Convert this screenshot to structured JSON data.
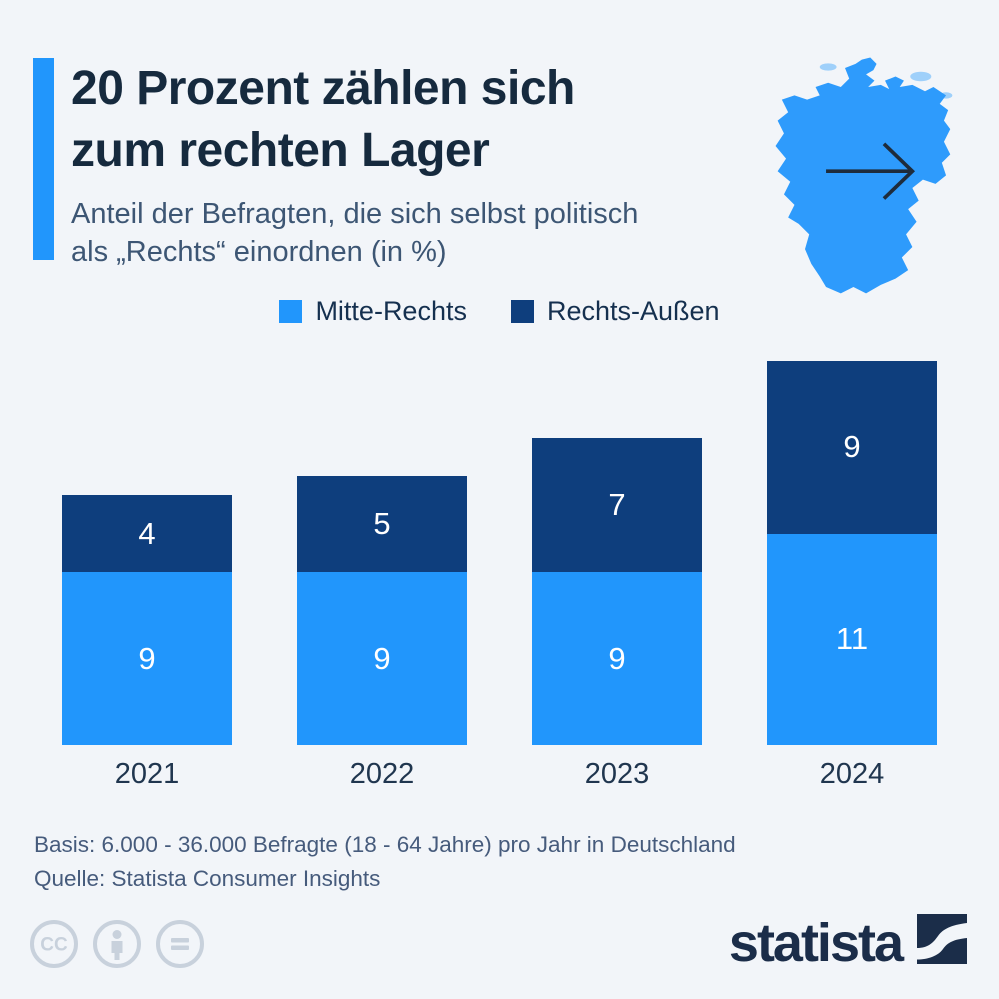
{
  "page": {
    "background": "#f2f5f9"
  },
  "header": {
    "title_line1": "20 Prozent zählen sich",
    "title_line2": "zum rechten Lager",
    "subtitle_line1": "Anteil der Befragten, die sich selbst politisch",
    "subtitle_line2": "als „Rechts“ einordnen (in %)",
    "accent_color": "#2196fc"
  },
  "map": {
    "country": "Deutschland",
    "fill": "#2e9bfc",
    "arrow_icon": "right-arrow"
  },
  "chart_data": {
    "type": "bar",
    "stacked": true,
    "categories": [
      "2021",
      "2022",
      "2023",
      "2024"
    ],
    "series": [
      {
        "name": "Mitte-Rechts",
        "color": "#2196fc",
        "values": [
          9,
          9,
          9,
          11
        ]
      },
      {
        "name": "Rechts-Außen",
        "color": "#0e3e7d",
        "values": [
          4,
          5,
          7,
          9
        ]
      }
    ],
    "title": "20 Prozent zählen sich zum rechten Lager",
    "subtitle": "Anteil der Befragten, die sich selbst politisch als „Rechts“ einordnen (in %)",
    "unit": "%",
    "ylim": [
      0,
      20
    ],
    "grid": false,
    "legend_position": "top",
    "value_labels": "inside-white"
  },
  "footer": {
    "basis": "Basis: 6.000 - 36.000 Befragte (18 - 64 Jahre) pro Jahr in Deutschland",
    "source": "Quelle: Statista Consumer Insights"
  },
  "branding": {
    "logo_text": "statista",
    "brand_navy": "#1b2d49",
    "license_icons": [
      "cc",
      "attribution-person",
      "no-derivatives-equals"
    ],
    "icon_color": "#c8d1dc"
  }
}
